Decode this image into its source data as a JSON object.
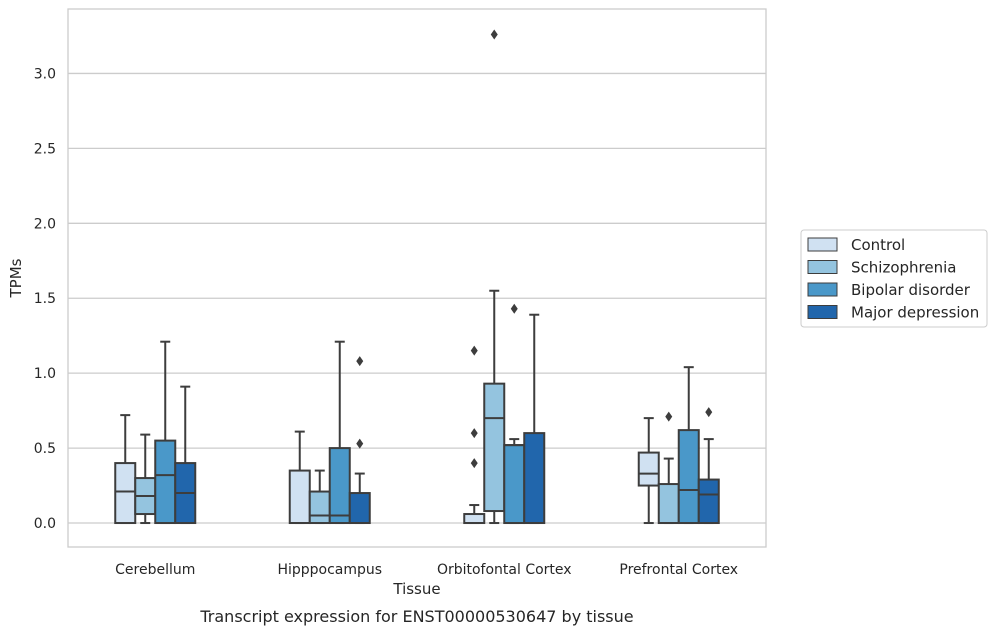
{
  "caption": "Transcript expression for ENST00000530647 by tissue",
  "chart_data": {
    "type": "box",
    "xlabel": "Tissue",
    "ylabel": "TPMs",
    "categories": [
      "Cerebellum",
      "Hipppocampus",
      "Orbitofontal Cortex",
      "Prefrontal Cortex"
    ],
    "ylim": [
      -0.16,
      3.43
    ],
    "yticks": [
      "0.0",
      "0.5",
      "1.0",
      "1.5",
      "2.0",
      "2.5",
      "3.0"
    ],
    "grid": true,
    "legend_position": "right",
    "series": [
      {
        "name": "Control",
        "color": "#d0e1f2",
        "boxes": [
          {
            "whislo": 0.0,
            "q1": 0.0,
            "med": 0.21,
            "q3": 0.4,
            "whishi": 0.72,
            "fliers": []
          },
          {
            "whislo": 0.0,
            "q1": 0.0,
            "med": 0.0,
            "q3": 0.35,
            "whishi": 0.61,
            "fliers": []
          },
          {
            "whislo": 0.0,
            "q1": 0.0,
            "med": 0.0,
            "q3": 0.06,
            "whishi": 0.12,
            "fliers": [
              0.4,
              0.6,
              1.15
            ]
          },
          {
            "whislo": 0.0,
            "q1": 0.25,
            "med": 0.33,
            "q3": 0.47,
            "whishi": 0.7,
            "fliers": []
          }
        ]
      },
      {
        "name": "Schizophrenia",
        "color": "#94c4df",
        "boxes": [
          {
            "whislo": 0.0,
            "q1": 0.06,
            "med": 0.18,
            "q3": 0.3,
            "whishi": 0.59,
            "fliers": []
          },
          {
            "whislo": 0.0,
            "q1": 0.0,
            "med": 0.05,
            "q3": 0.21,
            "whishi": 0.35,
            "fliers": []
          },
          {
            "whislo": 0.0,
            "q1": 0.08,
            "med": 0.7,
            "q3": 0.93,
            "whishi": 1.55,
            "fliers": [
              3.26
            ]
          },
          {
            "whislo": 0.0,
            "q1": 0.0,
            "med": 0.0,
            "q3": 0.26,
            "whishi": 0.43,
            "fliers": [
              0.71
            ]
          }
        ]
      },
      {
        "name": "Bipolar disorder",
        "color": "#4a98c9",
        "boxes": [
          {
            "whislo": 0.0,
            "q1": 0.0,
            "med": 0.32,
            "q3": 0.55,
            "whishi": 1.21,
            "fliers": []
          },
          {
            "whislo": 0.0,
            "q1": 0.0,
            "med": 0.05,
            "q3": 0.5,
            "whishi": 1.21,
            "fliers": []
          },
          {
            "whislo": 0.0,
            "q1": 0.0,
            "med": 0.52,
            "q3": 0.52,
            "whishi": 0.56,
            "fliers": [
              1.43
            ]
          },
          {
            "whislo": 0.0,
            "q1": 0.0,
            "med": 0.22,
            "q3": 0.62,
            "whishi": 1.04,
            "fliers": []
          }
        ]
      },
      {
        "name": "Major depression",
        "color": "#2166ac",
        "boxes": [
          {
            "whislo": 0.0,
            "q1": 0.0,
            "med": 0.2,
            "q3": 0.4,
            "whishi": 0.91,
            "fliers": []
          },
          {
            "whislo": 0.0,
            "q1": 0.0,
            "med": 0.0,
            "q3": 0.2,
            "whishi": 0.33,
            "fliers": [
              0.53,
              1.08
            ]
          },
          {
            "whislo": 0.0,
            "q1": 0.0,
            "med": 0.0,
            "q3": 0.6,
            "whishi": 1.39,
            "fliers": []
          },
          {
            "whislo": 0.0,
            "q1": 0.0,
            "med": 0.19,
            "q3": 0.29,
            "whishi": 0.56,
            "fliers": [
              0.74
            ]
          }
        ]
      }
    ]
  }
}
